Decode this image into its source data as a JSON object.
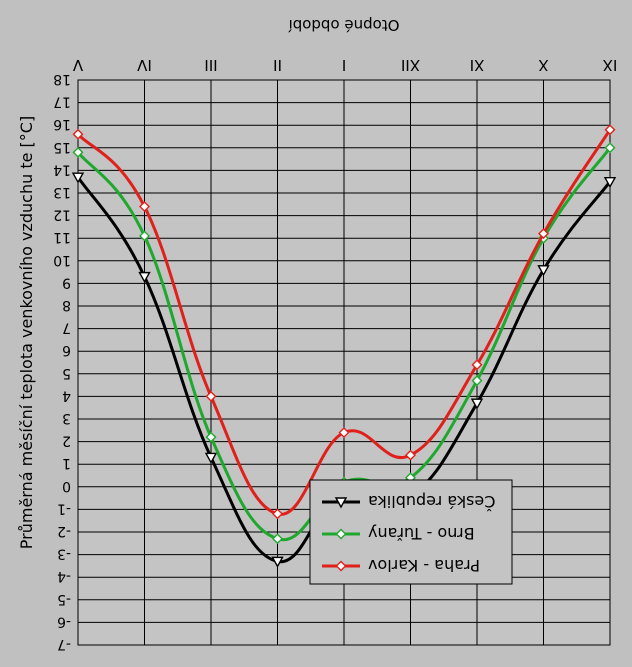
{
  "chart_data": {
    "type": "line",
    "title": "Otopné období",
    "ylabel": "Průměrná měsíční teplota venkovního vzduchu te [°C]",
    "categories": [
      "IX",
      "X",
      "XI",
      "XII",
      "I",
      "II",
      "III",
      "IV",
      "V"
    ],
    "y_ticks": [
      "-7",
      "-6",
      "-5",
      "-4",
      "-3",
      "-2",
      "-1",
      "0",
      "1",
      "2",
      "3",
      "4",
      "5",
      "6",
      "7",
      "8",
      "9",
      "10",
      "11",
      "12",
      "13",
      "14",
      "15",
      "16",
      "17",
      "18"
    ],
    "ylim": [
      -7,
      18
    ],
    "y_axis_inverted": true,
    "rendered_mirrored_upside_down": true,
    "grid": true,
    "legend_position": "bottom-center",
    "series": [
      {
        "name": "Česká republika",
        "color": "#000000",
        "marker": "triangle",
        "values": [
          13.5,
          9.6,
          3.7,
          -0.4,
          0.0,
          -3.3,
          1.3,
          9.3,
          13.7
        ]
      },
      {
        "name": "Brno - Tuřany",
        "color": "#1fa82e",
        "marker": "diamond",
        "values": [
          15.0,
          11.0,
          4.7,
          0.4,
          0.2,
          -2.3,
          2.2,
          11.1,
          14.8
        ]
      },
      {
        "name": "Praha - Karlov",
        "color": "#e0201a",
        "marker": "diamond",
        "values": [
          15.8,
          11.2,
          5.4,
          1.4,
          2.4,
          -1.2,
          4.0,
          12.4,
          15.6
        ]
      }
    ]
  }
}
